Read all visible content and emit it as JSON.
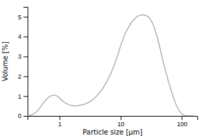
{
  "chart_data": {
    "type": "line",
    "xlabel": "Particle size [μm]",
    "ylabel": "Volume [%]",
    "x": [
      0.3,
      0.35,
      0.4,
      0.45,
      0.5,
      0.55,
      0.6,
      0.65,
      0.7,
      0.75,
      0.8,
      0.85,
      0.9,
      0.95,
      1.0,
      1.1,
      1.2,
      1.4,
      1.6,
      1.8,
      2.0,
      2.5,
      3.0,
      3.5,
      4.0,
      5.0,
      6.0,
      7.0,
      8.0,
      9.0,
      10.0,
      12.0,
      15.0,
      18.0,
      20.0,
      22.0,
      25.0,
      28.0,
      30.0,
      33.0,
      35.0,
      40.0,
      45.0,
      50.0,
      60.0,
      70.0,
      80.0,
      90.0,
      100.0,
      110.0,
      120.0,
      130.0,
      140.0,
      150.0,
      155.0
    ],
    "values": [
      0.0,
      0.05,
      0.15,
      0.3,
      0.5,
      0.68,
      0.82,
      0.92,
      0.99,
      1.03,
      1.05,
      1.04,
      1.01,
      0.96,
      0.9,
      0.78,
      0.68,
      0.57,
      0.52,
      0.5,
      0.51,
      0.58,
      0.68,
      0.82,
      0.98,
      1.35,
      1.75,
      2.18,
      2.62,
      3.08,
      3.55,
      4.2,
      4.72,
      4.98,
      5.07,
      5.1,
      5.08,
      5.02,
      4.92,
      4.7,
      4.52,
      3.95,
      3.3,
      2.7,
      1.78,
      1.1,
      0.6,
      0.28,
      0.1,
      0.03,
      0.01,
      0.0,
      0.0,
      0.0,
      0.0
    ],
    "color": "#b0b0b0",
    "log": "x",
    "xlim": [
      0.3,
      180
    ],
    "ylim": [
      0,
      5.5
    ],
    "xticks": [
      1,
      10,
      100
    ],
    "yticks": [
      0,
      1,
      2,
      3,
      4,
      5
    ],
    "grid": false
  }
}
